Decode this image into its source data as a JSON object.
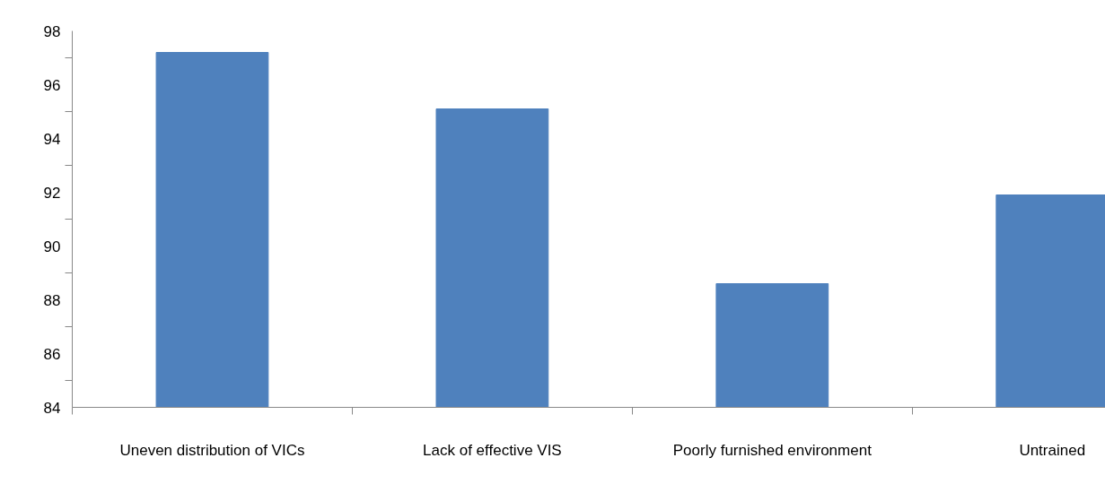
{
  "chart_data": {
    "type": "bar",
    "categories": [
      "Uneven distribution of VICs",
      "Lack of effective VIS",
      "Poorly furnished environment",
      "Untrained"
    ],
    "values": [
      97.2,
      95.1,
      88.6,
      91.9
    ],
    "color": "#4f81bd",
    "ylim": [
      84,
      98
    ],
    "yticks": [
      84,
      {
        "value": 85,
        "label": null
      },
      86,
      {
        "value": 87,
        "label": null
      },
      88,
      {
        "value": 89,
        "label": null
      },
      90,
      {
        "value": 91,
        "label": null
      },
      92,
      {
        "value": 93,
        "label": null
      },
      94,
      {
        "value": 95,
        "label": null
      },
      96,
      {
        "value": 97,
        "label": null
      },
      98
    ],
    "grid": false
  }
}
